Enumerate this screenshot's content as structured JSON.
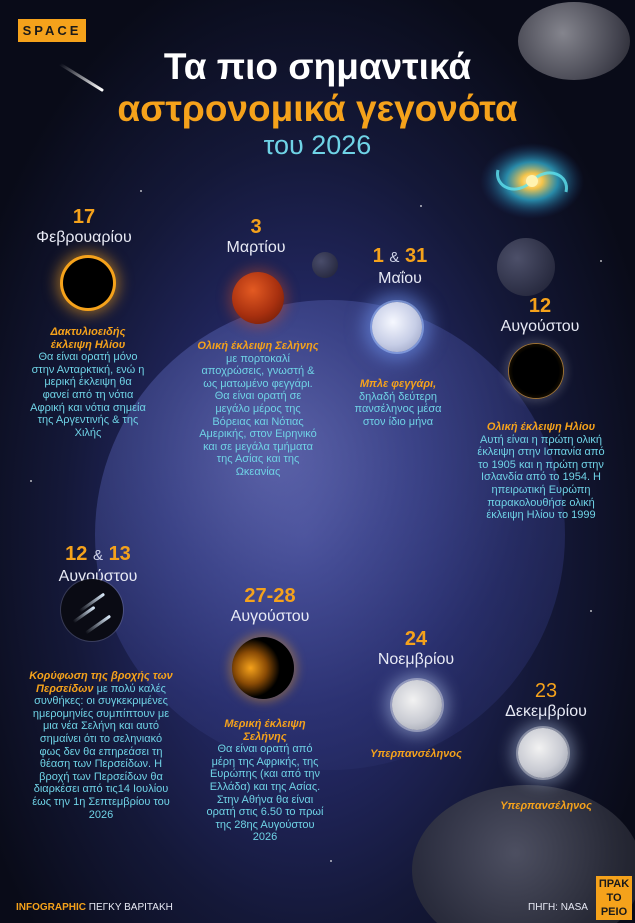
{
  "tag": "SPACE",
  "title": {
    "line1": "Τα πιο σημαντικά",
    "line2": "αστρονομικά γεγονότα",
    "line3": "του 2026"
  },
  "events": [
    {
      "day": "17",
      "month": "Φεβρουαρίου",
      "highlight": "Δακτυλιοειδής έκλειψη Ηλίου",
      "text": "Θα είναι ορατή μόνο στην Ανταρκτική, ενώ η μερική έκλειψη θα φανεί από τη νότια Αφρική και νότια σημεία της Αργεντινής & της Χιλής"
    },
    {
      "day": "3",
      "month": "Μαρτίου",
      "highlight": "Ολική έκλειψη Σελήνης",
      "text": "με πορτοκαλί αποχρώσεις, γνωστή & ως ματωμένο φεγγάρι. Θα είναι ορατή σε μεγάλο μέρος της Βόρειας και Νότιας Αμερικής, στον Ειρηνικό και σε μεγάλα τμήματα της Ασίας και της Ωκεανίας"
    },
    {
      "day_a": "1",
      "amp": "&",
      "day_b": "31",
      "month": "Μαΐου",
      "highlight": "Μπλε φεγγάρι,",
      "text": "δηλαδή δεύτερη πανσέληνος μέσα στον ίδιο μήνα"
    },
    {
      "day": "12",
      "month": "Αυγούστου",
      "highlight": "Ολική έκλειψη Ηλίου",
      "text": "Αυτή είναι η πρώτη ολική έκλειψη στην Ισπανία από το 1905 και η πρώτη στην Ισλανδία από το 1954. Η ηπειρωτική Ευρώπη παρακολουθήσε ολική έκλειψη Ηλίου το 1999"
    },
    {
      "day_a": "12",
      "amp": "&",
      "day_b": "13",
      "month": "Αυγούστου",
      "highlight": "Κορύφωση της βροχής των Περσείδων",
      "text": "με πολύ καλές συνθήκες: οι συγκεκριμένες ημερομηνίες συμπίπτουν με μια νέα Σελήνη και αυτό σημαίνει ότι το σεληνιακό φως δεν θα επηρεάσει τη θέαση των Περσείδων. Η βροχή των Περσείδων θα διαρκέσει από τις14 Ιουλίου έως την 1η Σεπτεμβρίου του 2026"
    },
    {
      "day": "27-28",
      "month": "Αυγούστου",
      "highlight": "Μερική έκλειψη Σελήνης",
      "text": "Θα είναι ορατή από μέρη της Αφρικής, της Ευρώπης (και από την Ελλάδα) και της Ασίας. Στην Αθήνα θα είναι ορατή στις 6.50 το πρωί της 28ης Αυγούστου 2026"
    },
    {
      "day": "24",
      "month": "Νοεμβρίου",
      "highlight": "Υπερπανσέληνος"
    },
    {
      "day": "23",
      "month": "Δεκεμβρίου",
      "highlight": "Υπερπανσέληνος"
    }
  ],
  "footer": {
    "infographic": "INFOGRAPHIC",
    "author": "ΠΕΓΚΥ ΒΑΡΙΤΑΚΗ",
    "source": "ΠΗΓΗ: NASA",
    "logo_line1": "ΠΡΑΚ",
    "logo_line2": "ΤΟ",
    "logo_line3": "ΡΕΙΟ"
  },
  "colors": {
    "accent": "#f5a21b",
    "cyan": "#6fd3e6",
    "background": "#0a0e1c"
  }
}
